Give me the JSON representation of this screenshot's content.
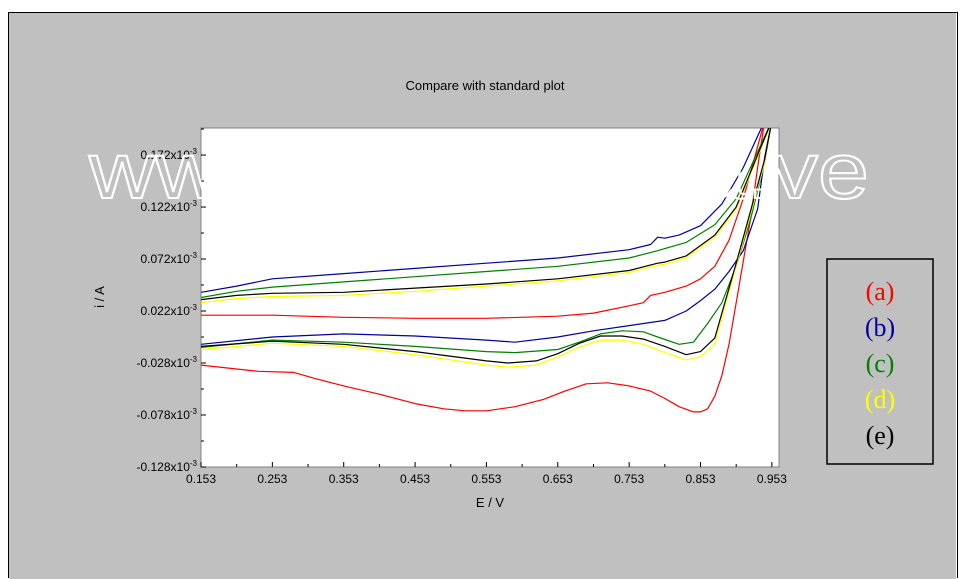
{
  "page": {
    "background": "#c0c0c0",
    "plot_background": "#ffffff"
  },
  "watermark": "www.bdigital.ula.ve",
  "chart_data": {
    "type": "line",
    "title": "Compare with standard plot",
    "xlabel": "E / V",
    "ylabel": "i / A",
    "xlim": [
      0.153,
      0.963
    ],
    "ylim": [
      -0.128,
      0.198
    ],
    "x_ticks": [
      0.153,
      0.253,
      0.353,
      0.453,
      0.553,
      0.653,
      0.753,
      0.853,
      0.953
    ],
    "x_tick_labels": [
      "0.153",
      "0.253",
      "0.353",
      "0.453",
      "0.553",
      "0.653",
      "0.753",
      "0.853",
      "0.953"
    ],
    "y_ticks": [
      -0.128,
      -0.078,
      -0.028,
      0.022,
      0.072,
      0.122,
      0.172
    ],
    "y_tick_mantissas": [
      "-0.128",
      "-0.078",
      "-0.028",
      "0.022",
      "0.072",
      "0.122",
      "0.172"
    ],
    "y_tick_exponent": "x10",
    "y_tick_power": "-3",
    "y_unit_note": "y values in units of 10^-3 A",
    "grid": false,
    "legend_position": "right",
    "series": [
      {
        "name": "(a)",
        "color": "#ff0000",
        "forward": [
          [
            0.153,
            0.018
          ],
          [
            0.253,
            0.018
          ],
          [
            0.353,
            0.016
          ],
          [
            0.453,
            0.015
          ],
          [
            0.553,
            0.015
          ],
          [
            0.653,
            0.017
          ],
          [
            0.703,
            0.02
          ],
          [
            0.753,
            0.027
          ],
          [
            0.773,
            0.03
          ],
          [
            0.783,
            0.037
          ],
          [
            0.803,
            0.04
          ],
          [
            0.833,
            0.046
          ],
          [
            0.853,
            0.053
          ],
          [
            0.873,
            0.065
          ],
          [
            0.893,
            0.09
          ],
          [
            0.913,
            0.13
          ],
          [
            0.933,
            0.18
          ],
          [
            0.943,
            0.205
          ]
        ],
        "reverse": [
          [
            0.943,
            0.205
          ],
          [
            0.933,
            0.16
          ],
          [
            0.923,
            0.11
          ],
          [
            0.913,
            0.07
          ],
          [
            0.903,
            0.03
          ],
          [
            0.893,
            -0.01
          ],
          [
            0.883,
            -0.04
          ],
          [
            0.873,
            -0.06
          ],
          [
            0.863,
            -0.072
          ],
          [
            0.853,
            -0.075
          ],
          [
            0.843,
            -0.075
          ],
          [
            0.823,
            -0.07
          ],
          [
            0.803,
            -0.062
          ],
          [
            0.783,
            -0.055
          ],
          [
            0.753,
            -0.05
          ],
          [
            0.723,
            -0.047
          ],
          [
            0.693,
            -0.048
          ],
          [
            0.663,
            -0.055
          ],
          [
            0.633,
            -0.063
          ],
          [
            0.593,
            -0.07
          ],
          [
            0.553,
            -0.074
          ],
          [
            0.523,
            -0.074
          ],
          [
            0.493,
            -0.072
          ],
          [
            0.453,
            -0.067
          ],
          [
            0.403,
            -0.058
          ],
          [
            0.353,
            -0.05
          ],
          [
            0.313,
            -0.043
          ],
          [
            0.283,
            -0.037
          ],
          [
            0.233,
            -0.036
          ],
          [
            0.153,
            -0.03
          ]
        ]
      },
      {
        "name": "(b)",
        "color": "#0000a0",
        "forward": [
          [
            0.153,
            0.04
          ],
          [
            0.203,
            0.046
          ],
          [
            0.253,
            0.053
          ],
          [
            0.353,
            0.058
          ],
          [
            0.453,
            0.063
          ],
          [
            0.553,
            0.068
          ],
          [
            0.653,
            0.073
          ],
          [
            0.753,
            0.081
          ],
          [
            0.783,
            0.086
          ],
          [
            0.793,
            0.093
          ],
          [
            0.803,
            0.092
          ],
          [
            0.823,
            0.095
          ],
          [
            0.853,
            0.104
          ],
          [
            0.883,
            0.125
          ],
          [
            0.913,
            0.16
          ],
          [
            0.943,
            0.205
          ]
        ],
        "reverse": [
          [
            0.953,
            0.205
          ],
          [
            0.943,
            0.17
          ],
          [
            0.933,
            0.12
          ],
          [
            0.913,
            0.08
          ],
          [
            0.893,
            0.06
          ],
          [
            0.873,
            0.043
          ],
          [
            0.853,
            0.032
          ],
          [
            0.833,
            0.022
          ],
          [
            0.803,
            0.013
          ],
          [
            0.753,
            0.008
          ],
          [
            0.703,
            0.003
          ],
          [
            0.653,
            -0.003
          ],
          [
            0.593,
            -0.008
          ],
          [
            0.553,
            -0.006
          ],
          [
            0.453,
            -0.002
          ],
          [
            0.353,
            0.0
          ],
          [
            0.253,
            -0.003
          ],
          [
            0.153,
            -0.01
          ]
        ]
      },
      {
        "name": "(c)",
        "color": "#008000",
        "forward": [
          [
            0.153,
            0.035
          ],
          [
            0.203,
            0.041
          ],
          [
            0.253,
            0.045
          ],
          [
            0.353,
            0.05
          ],
          [
            0.453,
            0.055
          ],
          [
            0.553,
            0.06
          ],
          [
            0.653,
            0.065
          ],
          [
            0.753,
            0.073
          ],
          [
            0.793,
            0.08
          ],
          [
            0.803,
            0.082
          ],
          [
            0.833,
            0.088
          ],
          [
            0.873,
            0.105
          ],
          [
            0.903,
            0.13
          ],
          [
            0.933,
            0.175
          ],
          [
            0.953,
            0.205
          ]
        ],
        "reverse": [
          [
            0.953,
            0.205
          ],
          [
            0.943,
            0.165
          ],
          [
            0.923,
            0.11
          ],
          [
            0.903,
            0.065
          ],
          [
            0.883,
            0.03
          ],
          [
            0.863,
            0.01
          ],
          [
            0.843,
            -0.008
          ],
          [
            0.823,
            -0.01
          ],
          [
            0.793,
            -0.003
          ],
          [
            0.773,
            0.002
          ],
          [
            0.743,
            0.003
          ],
          [
            0.713,
            0.0
          ],
          [
            0.683,
            -0.008
          ],
          [
            0.653,
            -0.015
          ],
          [
            0.593,
            -0.018
          ],
          [
            0.553,
            -0.017
          ],
          [
            0.453,
            -0.012
          ],
          [
            0.353,
            -0.008
          ],
          [
            0.253,
            -0.006
          ],
          [
            0.153,
            -0.013
          ]
        ]
      },
      {
        "name": "(d)",
        "color": "#ffff00",
        "forward": [
          [
            0.153,
            0.03
          ],
          [
            0.203,
            0.034
          ],
          [
            0.253,
            0.036
          ],
          [
            0.353,
            0.037
          ],
          [
            0.453,
            0.041
          ],
          [
            0.553,
            0.046
          ],
          [
            0.653,
            0.051
          ],
          [
            0.753,
            0.059
          ],
          [
            0.793,
            0.066
          ],
          [
            0.803,
            0.067
          ],
          [
            0.833,
            0.073
          ],
          [
            0.873,
            0.093
          ],
          [
            0.903,
            0.12
          ],
          [
            0.933,
            0.17
          ],
          [
            0.953,
            0.205
          ]
        ],
        "reverse": [
          [
            0.953,
            0.205
          ],
          [
            0.943,
            0.165
          ],
          [
            0.923,
            0.115
          ],
          [
            0.903,
            0.065
          ],
          [
            0.883,
            0.015
          ],
          [
            0.873,
            -0.01
          ],
          [
            0.853,
            -0.022
          ],
          [
            0.833,
            -0.025
          ],
          [
            0.803,
            -0.018
          ],
          [
            0.773,
            -0.01
          ],
          [
            0.743,
            -0.006
          ],
          [
            0.713,
            -0.006
          ],
          [
            0.683,
            -0.013
          ],
          [
            0.653,
            -0.022
          ],
          [
            0.623,
            -0.03
          ],
          [
            0.583,
            -0.032
          ],
          [
            0.553,
            -0.03
          ],
          [
            0.453,
            -0.02
          ],
          [
            0.353,
            -0.012
          ],
          [
            0.253,
            -0.009
          ],
          [
            0.153,
            -0.015
          ]
        ]
      },
      {
        "name": "(e)",
        "color": "#000000",
        "forward": [
          [
            0.153,
            0.033
          ],
          [
            0.203,
            0.037
          ],
          [
            0.253,
            0.039
          ],
          [
            0.353,
            0.04
          ],
          [
            0.453,
            0.044
          ],
          [
            0.553,
            0.048
          ],
          [
            0.653,
            0.053
          ],
          [
            0.753,
            0.061
          ],
          [
            0.793,
            0.068
          ],
          [
            0.803,
            0.069
          ],
          [
            0.833,
            0.075
          ],
          [
            0.873,
            0.095
          ],
          [
            0.903,
            0.122
          ],
          [
            0.933,
            0.172
          ],
          [
            0.953,
            0.205
          ]
        ],
        "reverse": [
          [
            0.953,
            0.205
          ],
          [
            0.943,
            0.168
          ],
          [
            0.923,
            0.118
          ],
          [
            0.903,
            0.068
          ],
          [
            0.883,
            0.02
          ],
          [
            0.873,
            -0.004
          ],
          [
            0.853,
            -0.017
          ],
          [
            0.833,
            -0.02
          ],
          [
            0.803,
            -0.012
          ],
          [
            0.773,
            -0.005
          ],
          [
            0.743,
            -0.002
          ],
          [
            0.713,
            -0.002
          ],
          [
            0.683,
            -0.009
          ],
          [
            0.653,
            -0.019
          ],
          [
            0.623,
            -0.026
          ],
          [
            0.583,
            -0.028
          ],
          [
            0.553,
            -0.026
          ],
          [
            0.453,
            -0.017
          ],
          [
            0.353,
            -0.01
          ],
          [
            0.253,
            -0.007
          ],
          [
            0.153,
            -0.012
          ]
        ]
      }
    ]
  }
}
